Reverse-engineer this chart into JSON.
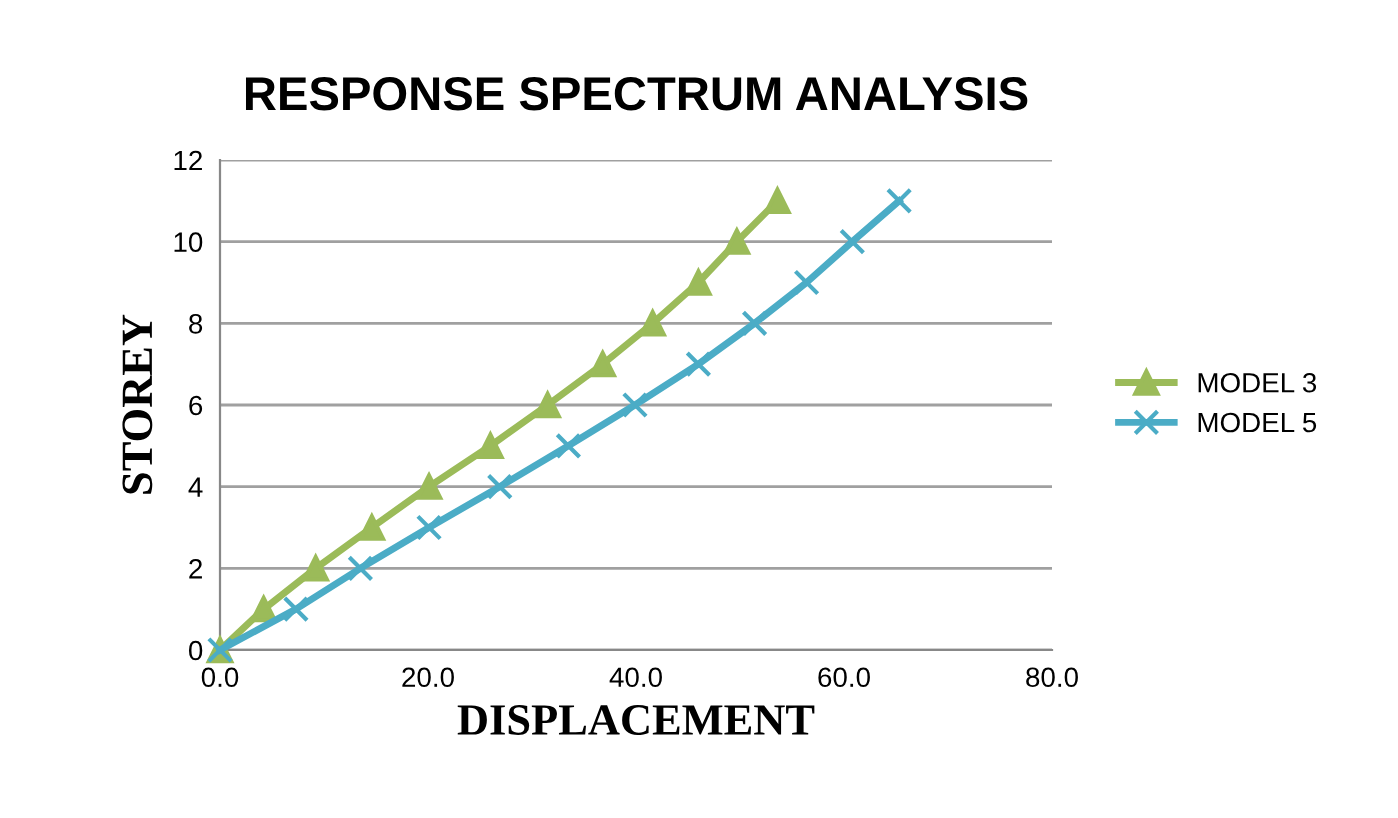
{
  "chart_data": {
    "type": "line",
    "title": "RESPONSE SPECTRUM ANALYSIS",
    "xlabel": "DISPLACEMENT",
    "ylabel": "STOREY",
    "series": [
      {
        "name": "MODEL 3",
        "color": "#9bbb59",
        "marker": "triangle",
        "x": [
          0,
          4.2,
          9.2,
          14.6,
          20.1,
          26.0,
          31.5,
          36.8,
          41.6,
          46.0,
          49.7,
          53.6
        ],
        "values": [
          0,
          1,
          2,
          3,
          4,
          5,
          6,
          7,
          8,
          9,
          10,
          11
        ]
      },
      {
        "name": "MODEL 5",
        "color": "#4bacc6",
        "marker": "cross",
        "x": [
          0,
          7.3,
          13.5,
          20.1,
          26.9,
          33.5,
          39.9,
          46.0,
          51.4,
          56.4,
          60.8,
          65.3
        ],
        "values": [
          0,
          1,
          2,
          3,
          4,
          5,
          6,
          7,
          8,
          9,
          10,
          11
        ]
      }
    ],
    "xlim": [
      0,
      80
    ],
    "xticks": [
      {
        "value": 0,
        "label": "0.0"
      },
      {
        "value": 20,
        "label": "20.0"
      },
      {
        "value": 40,
        "label": "40.0"
      },
      {
        "value": 60,
        "label": "60.0"
      },
      {
        "value": 80,
        "label": "80.0"
      }
    ],
    "ylim": [
      0,
      12
    ],
    "yticks": [
      0,
      2,
      4,
      6,
      8,
      10,
      12
    ],
    "grid": "y",
    "legend": "right"
  }
}
